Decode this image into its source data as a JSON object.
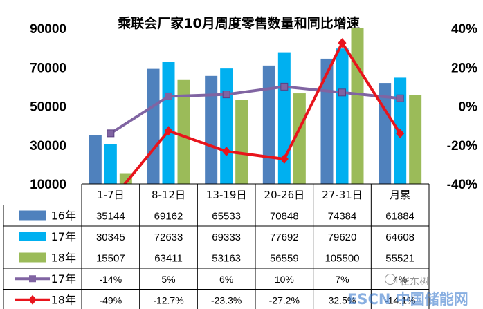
{
  "chart_data": {
    "type": "bar",
    "title": "乘联会厂家10月周度零售数量和同比增速",
    "categories": [
      "1-7日",
      "8-12日",
      "13-19日",
      "20-26日",
      "27-31日",
      "月累"
    ],
    "y_left": {
      "ylim": [
        10000,
        90000
      ],
      "ticks": [
        "10000",
        "30000",
        "50000",
        "70000",
        "90000"
      ]
    },
    "y_right": {
      "ylim": [
        -40,
        40
      ],
      "ticks": [
        "-40%",
        "-20%",
        "0%",
        "20%",
        "40%"
      ]
    },
    "bar_series": [
      {
        "name": "16年",
        "color": "#4F81BD",
        "values": [
          35144,
          69162,
          65533,
          70848,
          74384,
          61884
        ],
        "labels": [
          "35144",
          "69162",
          "65533",
          "70848",
          "74384",
          "61884"
        ]
      },
      {
        "name": "17年",
        "color": "#00B0F0",
        "values": [
          30345,
          72633,
          69333,
          77692,
          79620,
          64608
        ],
        "labels": [
          "30345",
          "72633",
          "69333",
          "77692",
          "79620",
          "64608"
        ]
      },
      {
        "name": "18年",
        "color": "#9BBB59",
        "values": [
          15507,
          63411,
          53163,
          56559,
          105500,
          55521
        ],
        "labels": [
          "15507",
          "63411",
          "53163",
          "56559",
          "105500",
          "55521"
        ]
      }
    ],
    "line_series": [
      {
        "name": "17年",
        "color": "#8064A2",
        "marker": "square",
        "values": [
          -14,
          5,
          6,
          10,
          7,
          4
        ],
        "labels": [
          "-14%",
          "5%",
          "6%",
          "10%",
          "7%",
          "4%"
        ]
      },
      {
        "name": "18年",
        "color": "#E8141C",
        "marker": "diamond",
        "values": [
          -49,
          -12.7,
          -23.3,
          -27.2,
          32.5,
          -14.1
        ],
        "labels": [
          "-49%",
          "-12.7%",
          "-23.3%",
          "-27.2%",
          "32.5%",
          "-14.1%"
        ]
      }
    ],
    "legend_placement": "data-table",
    "grid": false
  },
  "watermark": {
    "main": "ESCN 中国储能网",
    "author": "崔东树"
  }
}
